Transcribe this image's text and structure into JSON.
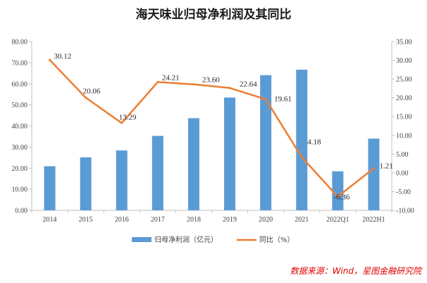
{
  "chart_data": {
    "type": "bar+line",
    "title": "海天味业归母净利润及其同比",
    "categories": [
      "2014",
      "2015",
      "2016",
      "2017",
      "2018",
      "2019",
      "2020",
      "2021",
      "2022Q1",
      "2022H1"
    ],
    "series": [
      {
        "name": "归母净利润（亿元）",
        "type": "bar",
        "axis": "left",
        "color": "#5B9BD5",
        "values": [
          20.9,
          25.1,
          28.4,
          35.3,
          43.7,
          53.5,
          64.1,
          66.7,
          18.5,
          34.0
        ]
      },
      {
        "name": "同比（%）",
        "type": "line",
        "axis": "right",
        "color": "#ED7D31",
        "values": [
          30.12,
          20.06,
          13.29,
          24.21,
          23.6,
          22.64,
          19.61,
          4.18,
          -6.36,
          1.21
        ],
        "labels": [
          "30.12",
          "20.06",
          "13.29",
          "24.21",
          "23.60",
          "22.64",
          "19.61",
          "4.18",
          "-6.36",
          "1.21"
        ]
      }
    ],
    "y_left": {
      "range": [
        0,
        80
      ],
      "step": 10,
      "ticks": [
        "0.00",
        "10.00",
        "20.00",
        "30.00",
        "40.00",
        "50.00",
        "60.00",
        "70.00",
        "80.00"
      ]
    },
    "y_right": {
      "range": [
        -10,
        35
      ],
      "step": 5,
      "ticks": [
        "-10.00",
        "-5.00",
        "0.00",
        "5.00",
        "10.00",
        "15.00",
        "20.00",
        "25.00",
        "30.00",
        "35.00"
      ]
    },
    "grid": false,
    "legend_position": "bottom",
    "source": "数据来源：Wind，星图金融研究院",
    "source_color": "#E00000"
  }
}
